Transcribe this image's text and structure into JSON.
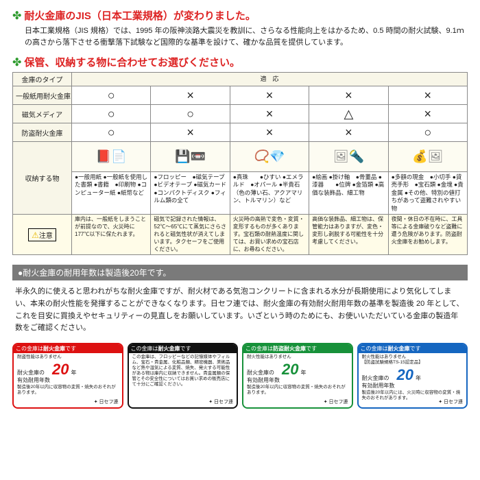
{
  "section1": {
    "title": "耐火金庫のJIS（日本工業規格）が変わりました。",
    "intro": "日本工業規格（JIS 規格）では、1995 年の阪神淡路大震災を教訓に、さらなる性能向上をはかるため、0.5 時間の耐火試験、9.1ｍの高さから落下させる衝撃落下試験など国際的な基準を設けて、確かな品質を提供しています。"
  },
  "section2": {
    "title": "保管、収納する物に合わせてお選びください。",
    "colhead_left": "金庫のタイプ",
    "colhead_span": "適　応",
    "rows": [
      "一般紙用耐火金庫",
      "磁気メディア",
      "防盗耐火金庫"
    ],
    "symbols": [
      [
        "○",
        "×",
        "×",
        "×",
        "×"
      ],
      [
        "○",
        "○",
        "×",
        "△",
        "×"
      ],
      [
        "○",
        "×",
        "×",
        "×",
        "○"
      ]
    ],
    "row_items_label": "収納する物",
    "items": [
      "●一般用紙\n●一般紙を使用した書類\n●書籍　●印刷物\n●コンピューター紙\n●紙幣など",
      "●フロッピー　●磁気テープ\n●ビデオテープ\n●磁気カード\n●コンパクトディスク\n●フィルム類の全て",
      "●真珠　　●ひすい\n●エメラルド　●オパール\n●半貴石（色の薄い石、アクアマリン、トルマリン）など",
      "●絵画\n●掛け軸　●骨董品\n●漆器　　●位牌\n●金箔類\n●高価な装飾品、細工物",
      "●多額の現金　●小切手\n●貸売手形　●宝石類\n●金塊\n●貴金属\n●その他、特別の値打ちがあって盗難されやすい物"
    ],
    "caution_label": "注意",
    "notes": [
      "庫内は、一般紙をしまうことが前提なので、火災時に177℃以下に保たれます。",
      "磁気で記録された情報は、52℃〜65℃にて蒸気にさらされると磁気性状が消えてしまいます。タクセーフをご使用ください。",
      "火災時の高熱で変色・変質・変形するものが多くあります。宝石類の耐熱温度に関しては、お買い求めの宝石店に、お尋ねください。",
      "高価な装飾品、細工物は、保管能力はありますが、変色・変形し剥脱する可能性を十分考慮してください。",
      "夜間・休日の不在時に、工具等による金庫破りなど盗難に遭う危険があります。防盗耐火金庫をお勧めします。"
    ]
  },
  "bar_text": "●耐火金庫の耐用年数は製造後20年です。",
  "body_text": "半永久的に使えると思われがちな耐火金庫ですが、耐火材である気泡コンクリートに含まれる水分が長期使用により気化してしまい、本来の耐火性能を発揮することができなくなります。日セフ連では、耐火金庫の有効耐火耐用年数の基準を製造後 20 年として、これを目安に買換えやセキュリティーの見直しをお願いしています。いざという時のためにも、お使いいただいている金庫の製造年数をご確認ください。",
  "labels": [
    {
      "border": "#d11",
      "top_bg": "#d11",
      "top": "この金庫は耐火金庫です",
      "big": "耐火金庫",
      "sub": "耐盗性能はありません",
      "yrs_label": "耐火金庫の\n有効耐用年数",
      "yrs": "20",
      "yrs_suffix": "年",
      "body": "製造後20年以内に収容物の変質・焼失のおそれがあります。",
      "brand": "日セフ連",
      "num_color": "#d11"
    },
    {
      "border": "#111",
      "top_bg": "#111",
      "top": "この金庫は耐火金庫です",
      "big": "耐火金庫",
      "sub": "この金庫は、フロッピーなどの記憶媒体やフィルム、宝石・貴金属、化粧品類、精密機器、美術品など熱や湿気による変質、焼失、発火する可能性がある物は庫内に収納できません。貴金属類の保管とその安全性についてはお買い求めの販売店にて十分にご確認ください。",
      "body": "",
      "brand": "日セフ連",
      "num_color": "#111"
    },
    {
      "border": "#17913a",
      "top_bg": "#17913a",
      "top": "この金庫は防盗耐火金庫です",
      "big": "防盗耐火金庫",
      "sub": "耐火性能はありません",
      "yrs_label": "耐火金庫の\n有効耐用年数",
      "yrs": "20",
      "yrs_suffix": "年",
      "body": "製造後20年以内に収容物の変質・焼失のおそれがあります。",
      "brand": "日セフ連",
      "num_color": "#17913a"
    },
    {
      "border": "#1566c0",
      "top_bg": "#1566c0",
      "top": "この金庫は耐火金庫です",
      "big": "耐火金庫",
      "sub": "耐火性能はありません\n【防盗試験規格TS-15認定品】",
      "yrs_label": "耐火金庫の\n有効耐用年数",
      "yrs": "20",
      "yrs_suffix": "年",
      "body": "製造後20年以内には、火災時に収容物の変質・焼失のおそれがあります。",
      "brand": "日セフ連",
      "num_color": "#1566c0"
    }
  ]
}
